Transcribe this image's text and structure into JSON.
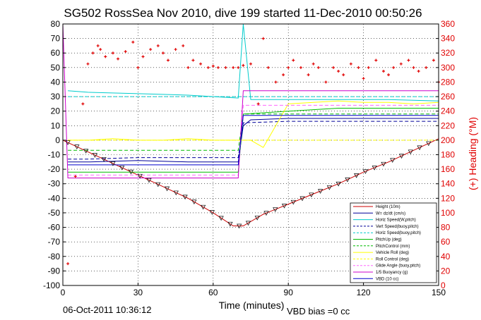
{
  "chart_data": {
    "type": "line",
    "title": "SG502 RossSea Nov 2010, dive 199 started 11-Dec-2010 00:50:26",
    "xlabel": "Time (minutes)",
    "ylabel_right": "(+) Heading (°M)",
    "timestamp": "06-Oct-2011 10:36:12",
    "footnote": "VBD bias =0 cc",
    "xlim": [
      0,
      150
    ],
    "ylim": [
      -100,
      80
    ],
    "ylim_right": [
      0,
      360
    ],
    "xticks": [
      "0",
      "30",
      "60",
      "90",
      "120",
      "150"
    ],
    "yticks_left": [
      "80",
      "70",
      "60",
      "50",
      "40",
      "30",
      "20",
      "10",
      "0",
      "-10",
      "-20",
      "-30",
      "-40",
      "-50",
      "-60",
      "-70",
      "-80",
      "-90",
      "-100"
    ],
    "yticks_right": [
      "360",
      "340",
      "320",
      "300",
      "280",
      "260",
      "240",
      "220",
      "200",
      "180",
      "160",
      "140",
      "120",
      "100",
      "80",
      "60",
      "40",
      "20",
      "0"
    ],
    "grid": true,
    "legend_position": "bottom-right",
    "colors": {
      "heading": "#e00000",
      "axis_right": "#e00000"
    },
    "series": [
      {
        "name": "Height (10m)",
        "color": "#cc0000",
        "style": "solid",
        "x": [
          0,
          10,
          20,
          30,
          40,
          50,
          60,
          68,
          72,
          80,
          90,
          100,
          110,
          120,
          130,
          140,
          150
        ],
        "y": [
          0,
          -8,
          -16,
          -24,
          -32,
          -40,
          -50,
          -59,
          -59,
          -51,
          -44,
          -37,
          -30,
          -22,
          -15,
          -7,
          1
        ]
      },
      {
        "name": "W= dz/dt (cm/s)",
        "color": "#000099",
        "style": "solid",
        "x": [
          2,
          10,
          30,
          50,
          70,
          72,
          75,
          90,
          110,
          130,
          150
        ],
        "y": [
          -15,
          -15,
          -14,
          -15,
          -15,
          10,
          14,
          15,
          15,
          15,
          15
        ]
      },
      {
        "name": "Horiz Speed(W,pitch)",
        "color": "#00cccc",
        "style": "solid",
        "x": [
          2,
          10,
          30,
          50,
          70,
          72,
          75,
          90,
          110,
          130,
          150
        ],
        "y": [
          34,
          33,
          32,
          31,
          29,
          80,
          28,
          28,
          28,
          28,
          27
        ]
      },
      {
        "name": "Vert Speed(buoy,pitch)",
        "color": "#000099",
        "style": "dashed",
        "x": [
          2,
          10,
          30,
          50,
          70,
          72,
          90,
          110,
          130,
          150
        ],
        "y": [
          -13,
          -13,
          -12,
          -12,
          -12,
          12,
          13,
          13,
          13,
          13
        ]
      },
      {
        "name": "Horiz Speed(buoy,pitch)",
        "color": "#00cccc",
        "style": "dashed",
        "x": [
          2,
          150
        ],
        "y": [
          30,
          30
        ]
      },
      {
        "name": "PitchUp (deg)",
        "color": "#00bb00",
        "style": "solid",
        "x": [
          2,
          10,
          30,
          50,
          70,
          72,
          90,
          110,
          130,
          150
        ],
        "y": [
          -22,
          -22,
          -22,
          -22,
          -22,
          18,
          20,
          22,
          22,
          22
        ]
      },
      {
        "name": "PitchControl (mm)",
        "color": "#00bb00",
        "style": "dashed",
        "x": [
          2,
          70,
          72,
          150
        ],
        "y": [
          -7,
          -7,
          18,
          18
        ]
      },
      {
        "name": "Vehicle Roll (deg)",
        "color": "#ffff00",
        "style": "solid",
        "x": [
          2,
          10,
          20,
          30,
          40,
          50,
          60,
          70,
          75,
          80,
          90,
          100,
          110,
          120,
          130,
          140,
          150
        ],
        "y": [
          0,
          0,
          1,
          0,
          0,
          1,
          0,
          0,
          0,
          -5,
          25,
          26,
          27,
          26,
          26,
          25,
          26
        ]
      },
      {
        "name": "Roll Control (deg)",
        "color": "#ffff00",
        "style": "dashed",
        "x": [
          2,
          150
        ],
        "y": [
          0,
          0
        ]
      },
      {
        "name": "Glide Angle (buoy,pitch)",
        "color": "#ff66ff",
        "style": "dashed",
        "x": [
          2,
          70,
          72,
          150
        ],
        "y": [
          -24,
          -24,
          24,
          24
        ]
      },
      {
        "name": "1/5 Buoyancy (g)",
        "color": "#cc00cc",
        "style": "solid",
        "x": [
          0,
          2,
          70,
          72,
          150
        ],
        "y": [
          80,
          -26,
          -26,
          34,
          34
        ]
      },
      {
        "name": "VBD (10 cc)",
        "color": "#0000cc",
        "style": "solid",
        "x": [
          2,
          70,
          72,
          150
        ],
        "y": [
          -17,
          -17,
          17,
          17
        ]
      }
    ],
    "heading_points": {
      "name": "Heading (°M)",
      "color": "#e00000",
      "axis": "right",
      "x": [
        2,
        5,
        8,
        10,
        12,
        14,
        15,
        17,
        20,
        22,
        25,
        28,
        30,
        32,
        35,
        38,
        40,
        42,
        45,
        48,
        50,
        52,
        55,
        58,
        60,
        62,
        65,
        68,
        70,
        72,
        75,
        78,
        80,
        82,
        85,
        88,
        90,
        92,
        95,
        98,
        100,
        102,
        105,
        108,
        110,
        112,
        115,
        118,
        120,
        122,
        125,
        128,
        130,
        132,
        135,
        138,
        140,
        142,
        145,
        148,
        150
      ],
      "y": [
        30,
        150,
        250,
        305,
        320,
        330,
        325,
        315,
        320,
        312,
        322,
        335,
        300,
        315,
        325,
        330,
        320,
        310,
        325,
        330,
        300,
        310,
        305,
        300,
        302,
        300,
        300,
        300,
        300,
        303,
        305,
        250,
        340,
        300,
        280,
        290,
        300,
        310,
        300,
        290,
        305,
        300,
        280,
        300,
        295,
        290,
        305,
        300,
        285,
        300,
        310,
        295,
        290,
        300,
        305,
        310,
        300,
        295,
        300,
        310,
        280
      ]
    }
  }
}
